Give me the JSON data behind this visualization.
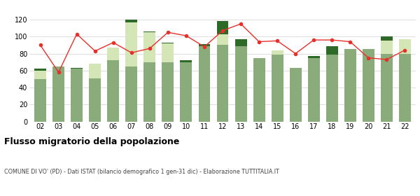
{
  "years": [
    "02",
    "03",
    "04",
    "05",
    "06",
    "07",
    "08",
    "09",
    "10",
    "11",
    "12",
    "13",
    "14",
    "15",
    "16",
    "17",
    "18",
    "19",
    "20",
    "21",
    "22"
  ],
  "iscritti_altri_comuni": [
    50,
    65,
    62,
    51,
    72,
    65,
    70,
    70,
    70,
    89,
    90,
    89,
    75,
    79,
    63,
    75,
    79,
    85,
    85,
    80,
    80
  ],
  "iscritti_estero": [
    10,
    0,
    0,
    17,
    15,
    52,
    35,
    22,
    0,
    0,
    13,
    0,
    0,
    5,
    0,
    0,
    0,
    0,
    0,
    15,
    17
  ],
  "iscritti_altri": [
    2,
    0,
    1,
    0,
    0,
    3,
    1,
    1,
    2,
    2,
    15,
    8,
    0,
    0,
    0,
    2,
    10,
    0,
    0,
    5,
    0
  ],
  "cancellati": [
    90,
    58,
    103,
    83,
    93,
    81,
    86,
    105,
    101,
    88,
    107,
    115,
    94,
    95,
    80,
    96,
    96,
    94,
    75,
    73,
    84
  ],
  "color_altri_comuni": "#8aab7a",
  "color_estero": "#d4e6b5",
  "color_altri": "#2d6a27",
  "color_cancellati": "#e8302a",
  "ylim": [
    0,
    120
  ],
  "yticks": [
    0,
    20,
    40,
    60,
    80,
    100,
    120
  ],
  "title": "Flusso migratorio della popolazione",
  "subtitle": "COMUNE DI VO' (PD) - Dati ISTAT (bilancio demografico 1 gen-31 dic) - Elaborazione TUTTITALIA.IT",
  "bg_color": "#ffffff",
  "grid_color": "#d8d8d8"
}
